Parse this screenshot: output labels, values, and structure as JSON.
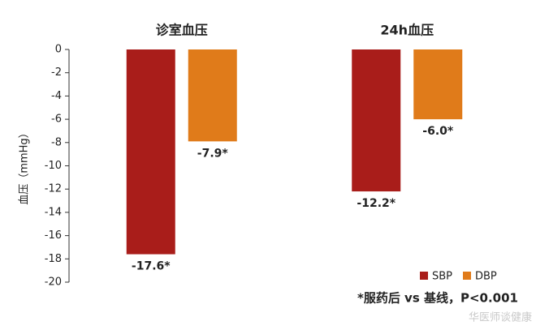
{
  "chart_data": {
    "type": "bar",
    "y_label": "血压（mmHg）",
    "categories": [
      "诊室血压",
      "24h血压"
    ],
    "series": [
      {
        "name": "SBP",
        "color": "#a91d1a",
        "values": [
          -17.6,
          -12.2
        ],
        "value_labels": [
          "-17.6*",
          "-12.2*"
        ]
      },
      {
        "name": "DBP",
        "color": "#e07b1a",
        "values": [
          -7.9,
          -6.0
        ],
        "value_labels": [
          "-7.9*",
          "-6.0*"
        ]
      }
    ],
    "ylim": [
      0,
      -20
    ],
    "yticks": [
      0,
      -2,
      -4,
      -6,
      -8,
      -10,
      -12,
      -14,
      -16,
      -18,
      -20
    ],
    "grid": false,
    "legend": "bottom-right",
    "note": "*服药后 vs 基线，P<0.001",
    "watermark": "华医师谈健康"
  }
}
